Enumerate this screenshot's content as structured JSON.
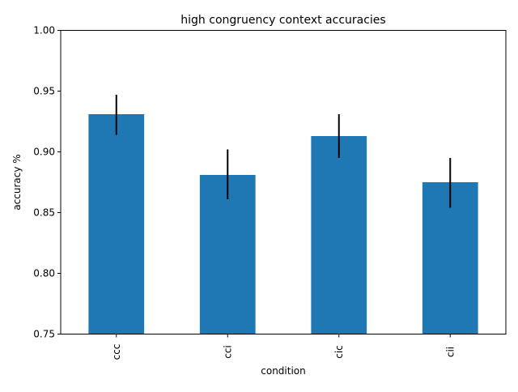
{
  "chart_data": {
    "type": "bar",
    "title": "high congruency context accuracies",
    "xlabel": "condition",
    "ylabel": "accuracy %",
    "categories": [
      "ccc",
      "cci",
      "cic",
      "cii"
    ],
    "values": [
      0.931,
      0.881,
      0.913,
      0.875
    ],
    "error_low": [
      0.914,
      0.861,
      0.895,
      0.854
    ],
    "error_high": [
      0.947,
      0.902,
      0.931,
      0.895
    ],
    "ylim": [
      0.75,
      1.0
    ],
    "yticks": [
      "0.75",
      "0.80",
      "0.85",
      "0.90",
      "0.95",
      "1.00"
    ],
    "grid": false,
    "legend": "none",
    "bar_color": "#1f77b4",
    "error_color": "#000000"
  }
}
